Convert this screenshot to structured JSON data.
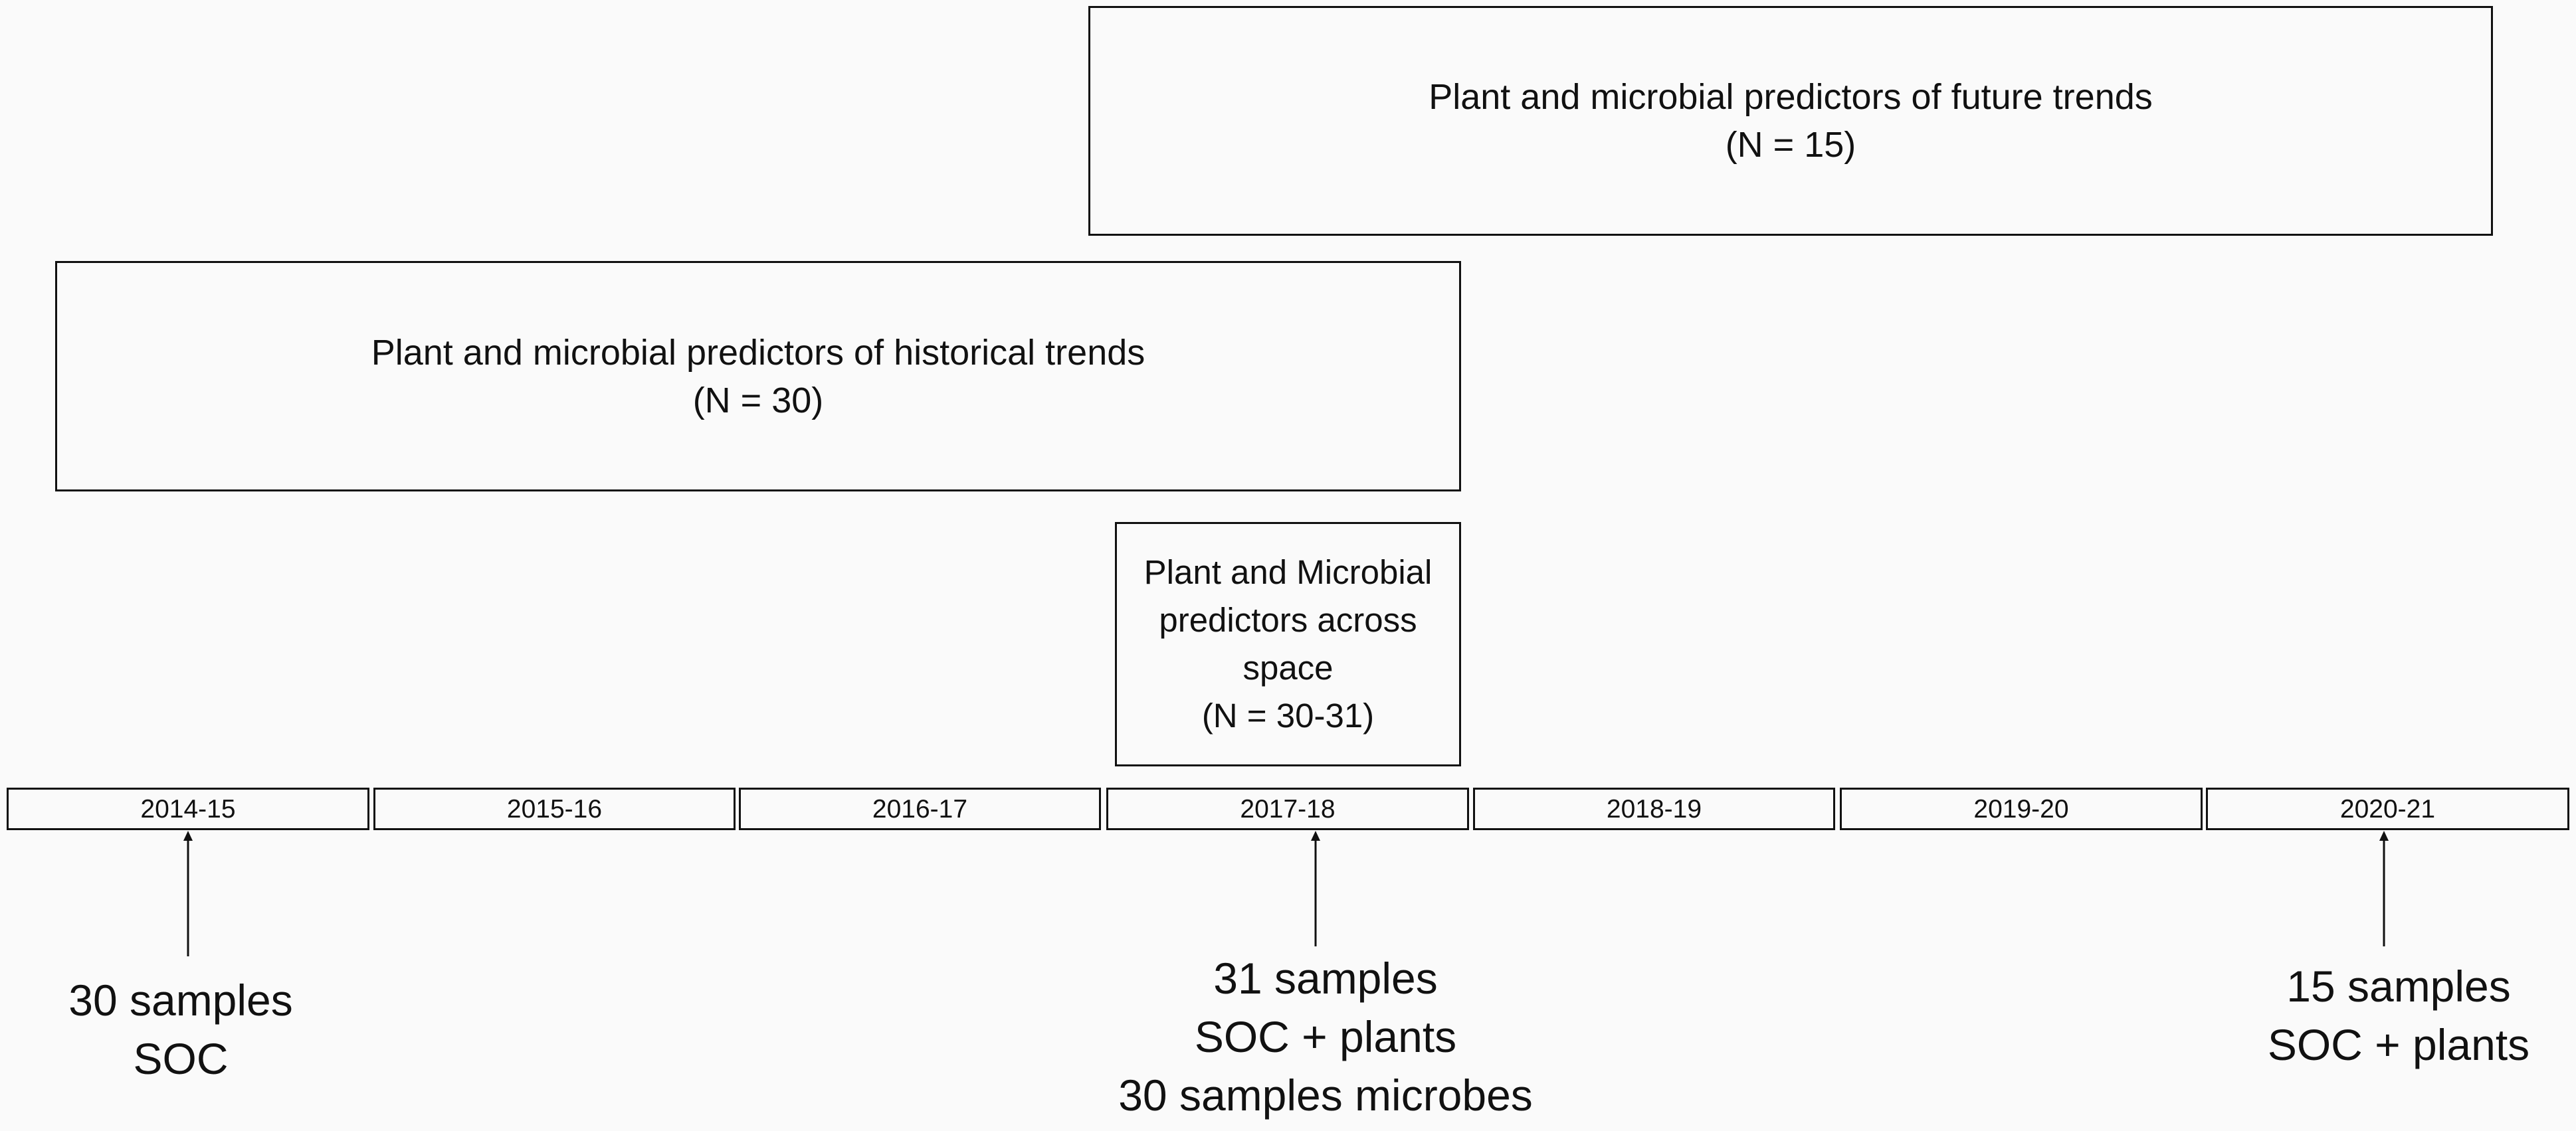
{
  "boxes": {
    "future": {
      "line1": "Plant and microbial predictors of future trends",
      "line2": "(N = 15)"
    },
    "historical": {
      "line1": "Plant and microbial predictors of historical trends",
      "line2": "(N = 30)"
    },
    "space": {
      "line1": "Plant and Microbial",
      "line2": "predictors across",
      "line3": "space",
      "line4": "(N = 30-31)"
    }
  },
  "timeline": {
    "years": [
      "2014-15",
      "2015-16",
      "2016-17",
      "2017-18",
      "2018-19",
      "2019-20",
      "2020-21"
    ]
  },
  "annotations": {
    "first": {
      "line1": "30 samples",
      "line2": "SOC"
    },
    "middle": {
      "line1": "31 samples",
      "line2": "SOC + plants",
      "line3": "30 samples microbes"
    },
    "last": {
      "line1": "15 samples",
      "line2": "SOC + plants"
    }
  }
}
